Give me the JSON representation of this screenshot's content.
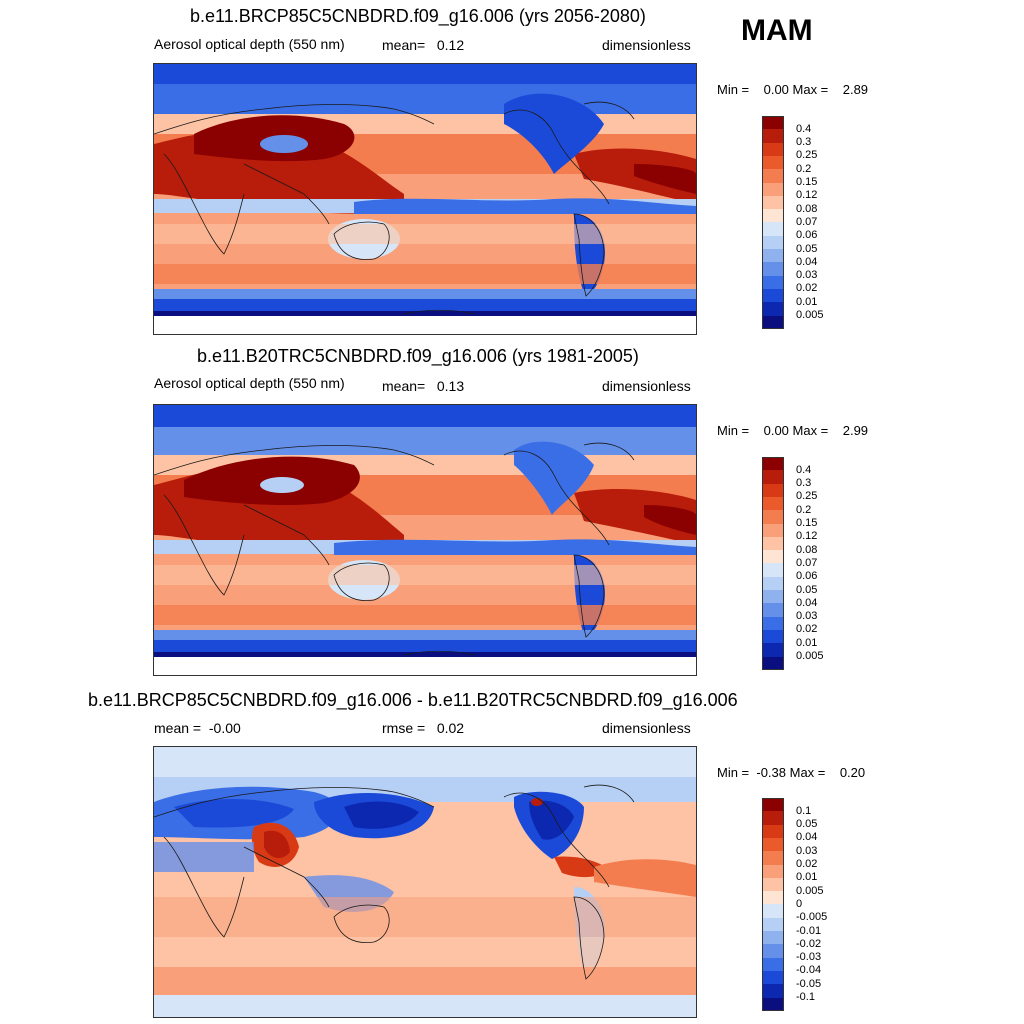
{
  "season": "MAM",
  "panels": [
    {
      "title": "b.e11.BRCP85C5CNBDRD.f09_g16.006 (yrs 2056-2080)",
      "left_label": "Aerosol optical depth (550 nm)",
      "center_label": "mean=   0.12",
      "right_label": "dimensionless",
      "minmax": "Min =    0.00 Max =    2.89",
      "type": "abs"
    },
    {
      "title": "b.e11.B20TRC5CNBDRD.f09_g16.006 (yrs 1981-2005)",
      "left_label": "Aerosol optical depth (550 nm)",
      "center_label": "mean=   0.13",
      "right_label": "dimensionless",
      "minmax": "Min =    0.00 Max =    2.99",
      "type": "abs"
    },
    {
      "title": "b.e11.BRCP85C5CNBDRD.f09_g16.006 - b.e11.B20TRC5CNBDRD.f09_g16.006",
      "left_label": "mean =  -0.00",
      "center_label": "rmse =   0.02",
      "right_label": "dimensionless",
      "minmax": "Min =  -0.38 Max =    0.20",
      "type": "diff"
    }
  ],
  "colorbars": {
    "abs": {
      "labels": [
        "0.4",
        "0.3",
        "0.25",
        "0.2",
        "0.15",
        "0.12",
        "0.08",
        "0.07",
        "0.06",
        "0.05",
        "0.04",
        "0.03",
        "0.02",
        "0.01",
        "0.005"
      ],
      "colors": [
        "#8b0000",
        "#b81c0a",
        "#d83a16",
        "#ea5a2a",
        "#f47d4f",
        "#f9a07a",
        "#fdc3a4",
        "#fde4d3",
        "#d6e6f8",
        "#b6cff4",
        "#8fb2ee",
        "#6590ea",
        "#3a6ee6",
        "#1b4ad8",
        "#0d28b0",
        "#0a0e7e"
      ]
    },
    "diff": {
      "labels": [
        "0.1",
        "0.05",
        "0.04",
        "0.03",
        "0.02",
        "0.01",
        "0.005",
        "0",
        "-0.005",
        "-0.01",
        "-0.02",
        "-0.03",
        "-0.04",
        "-0.05",
        "-0.1"
      ],
      "colors": [
        "#8b0000",
        "#b81c0a",
        "#d83a16",
        "#ea5a2a",
        "#f47d4f",
        "#f9a07a",
        "#fdc3a4",
        "#fde4d3",
        "#d6e6f8",
        "#b6cff4",
        "#8fb2ee",
        "#6590ea",
        "#3a6ee6",
        "#1b4ad8",
        "#0d28b0",
        "#0a0e7e"
      ]
    }
  }
}
